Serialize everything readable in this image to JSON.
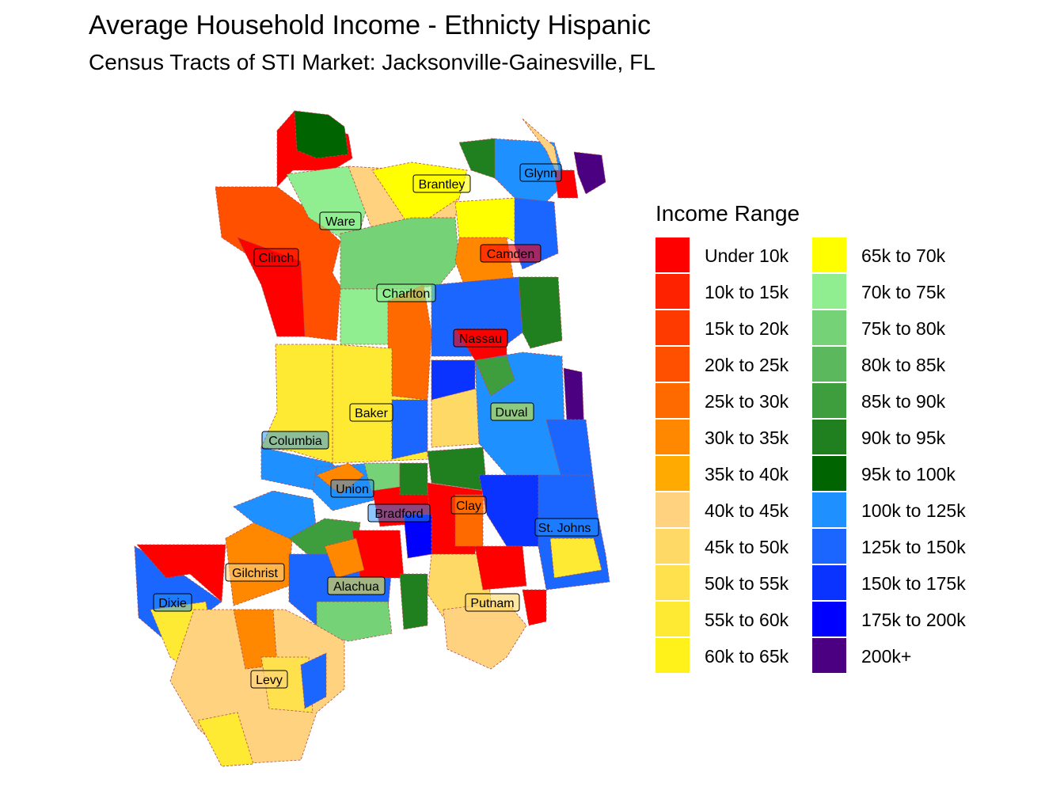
{
  "title": "Average Household Income - Ethnicty Hispanic",
  "subtitle": "Census Tracts of STI Market: Jacksonville-Gainesville, FL",
  "legend": {
    "title": "Income Range",
    "items": [
      {
        "label": "Under 10k",
        "color": "#ff0000"
      },
      {
        "label": "10k to 15k",
        "color": "#ff2200"
      },
      {
        "label": "15k to 20k",
        "color": "#ff3a00"
      },
      {
        "label": "20k to 25k",
        "color": "#ff5000"
      },
      {
        "label": "25k to 30k",
        "color": "#ff6a00"
      },
      {
        "label": "30k to 35k",
        "color": "#ff8800"
      },
      {
        "label": "35k to 40k",
        "color": "#ffaa00"
      },
      {
        "label": "40k to 45k",
        "color": "#ffd27f"
      },
      {
        "label": "45k to 50k",
        "color": "#ffd966"
      },
      {
        "label": "50k to 55k",
        "color": "#ffe14d"
      },
      {
        "label": "55k to 60k",
        "color": "#ffea33"
      },
      {
        "label": "60k to 65k",
        "color": "#fff21a"
      },
      {
        "label": "65k to 70k",
        "color": "#ffff00"
      },
      {
        "label": "70k to 75k",
        "color": "#90ee90"
      },
      {
        "label": "75k to 80k",
        "color": "#76d276"
      },
      {
        "label": "80k to 85k",
        "color": "#5cb85c"
      },
      {
        "label": "85k to 90k",
        "color": "#3e9e3e"
      },
      {
        "label": "90k to 95k",
        "color": "#208020"
      },
      {
        "label": "95k to 100k",
        "color": "#006400"
      },
      {
        "label": "100k to 125k",
        "color": "#1e90ff"
      },
      {
        "label": "125k to 150k",
        "color": "#1a66ff"
      },
      {
        "label": "150k to 175k",
        "color": "#0a33ff"
      },
      {
        "label": "175k to 200k",
        "color": "#0000ff"
      },
      {
        "label": "200k+",
        "color": "#4b0082"
      }
    ]
  },
  "counties": [
    {
      "name": "Glynn"
    },
    {
      "name": "Brantley"
    },
    {
      "name": "Ware"
    },
    {
      "name": "Clinch"
    },
    {
      "name": "Camden"
    },
    {
      "name": "Charlton"
    },
    {
      "name": "Nassau"
    },
    {
      "name": "Baker"
    },
    {
      "name": "Duval"
    },
    {
      "name": "Columbia"
    },
    {
      "name": "Union"
    },
    {
      "name": "Clay"
    },
    {
      "name": "Bradford"
    },
    {
      "name": "St. Johns"
    },
    {
      "name": "Gilchrist"
    },
    {
      "name": "Alachua"
    },
    {
      "name": "Dixie"
    },
    {
      "name": "Putnam"
    },
    {
      "name": "Levy"
    }
  ]
}
